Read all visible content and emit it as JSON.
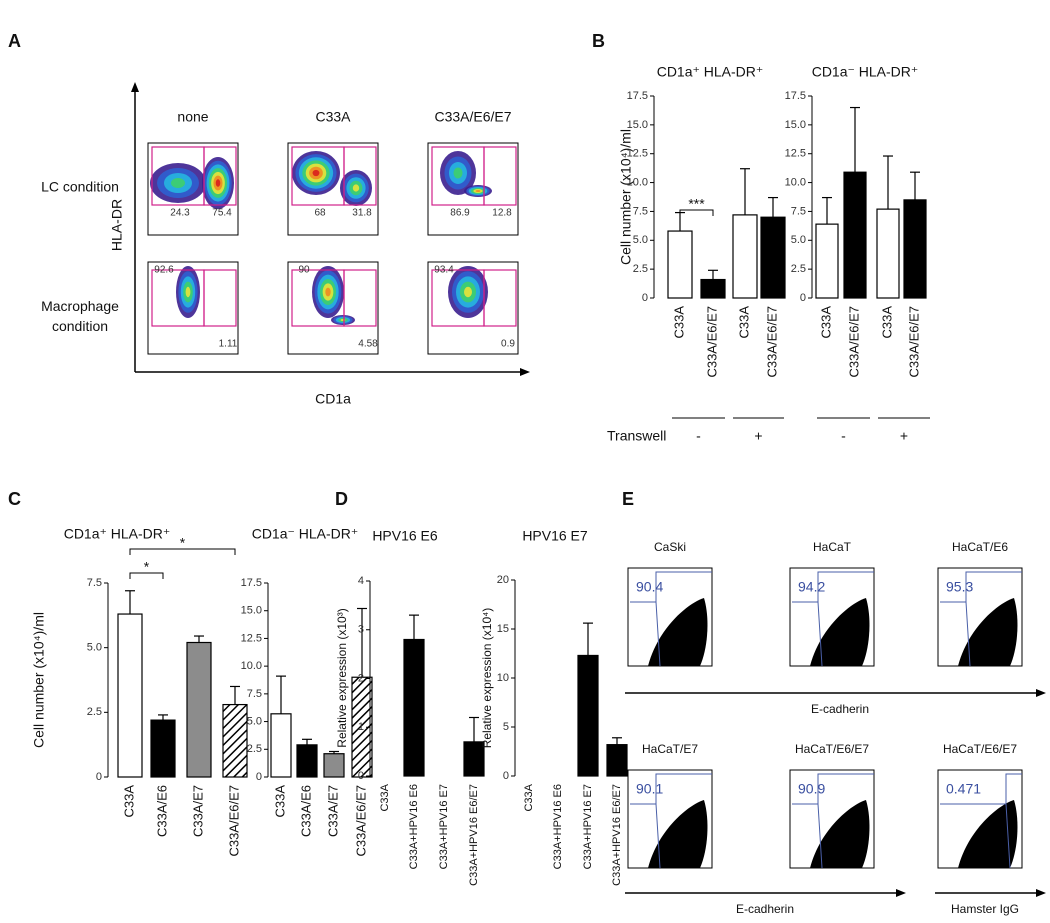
{
  "panel_labels": [
    "A",
    "B",
    "C",
    "D",
    "E"
  ],
  "flow_a": {
    "columns": [
      "none",
      "C33A",
      "C33A/E6/E7"
    ],
    "rows": [
      "LC condition",
      "Macrophage condition"
    ],
    "y_axis": "HLA-DR",
    "x_axis": "CD1a",
    "gates": [
      [
        [
          24.3,
          75.4
        ],
        [
          68,
          31.8
        ],
        [
          86.9,
          12.8
        ]
      ],
      [
        [
          92.6,
          1.11
        ],
        [
          90,
          4.58
        ],
        [
          93.4,
          0.9
        ]
      ]
    ]
  },
  "flow_e": {
    "plots": [
      "CaSki",
      "HaCaT",
      "HaCaT/E6",
      "HaCaT/E7",
      "HaCaT/E6/E7",
      "HaCaT/E6/E7"
    ],
    "gates": [
      90.4,
      94.2,
      95.3,
      90.1,
      90.9,
      0.471
    ],
    "x_axes": [
      "E-cadherin",
      "E-cadherin",
      "Hamster IgG"
    ]
  },
  "chart_data": [
    {
      "type": "bar",
      "title": "CD1a⁺ HLA-DR⁺",
      "y_label": "Cell number (x10⁴)/ml",
      "categories": [
        "C33A",
        "C33A/E6/E7",
        "C33A",
        "C33A/E6/E7"
      ],
      "values": [
        5.8,
        1.6,
        7.2,
        7.0
      ],
      "errors": [
        1.6,
        0.8,
        4.0,
        1.7
      ],
      "colors": [
        "#ffffff",
        "#000000",
        "#ffffff",
        "#000000"
      ],
      "ylim": [
        0,
        17.5
      ],
      "yticks": [
        0,
        2.5,
        {
          "value": 5,
          "label": "5.0"
        },
        7.5,
        {
          "value": 10,
          "label": "10.0"
        },
        12.5,
        {
          "value": 15,
          "label": "15.0"
        },
        17.5
      ],
      "annotations": [
        "***"
      ],
      "group_label": "Transwell",
      "groups": [
        "-",
        "+"
      ]
    },
    {
      "type": "bar",
      "title": "CD1a⁻ HLA-DR⁺",
      "categories": [
        "C33A",
        "C33A/E6/E7",
        "C33A",
        "C33A/E6/E7"
      ],
      "values": [
        6.4,
        10.9,
        7.7,
        8.5
      ],
      "errors": [
        2.3,
        5.6,
        4.6,
        2.4
      ],
      "colors": [
        "#ffffff",
        "#000000",
        "#ffffff",
        "#000000"
      ],
      "ylim": [
        0,
        17.5
      ],
      "yticks": [
        0,
        2.5,
        {
          "value": 5,
          "label": "5.0"
        },
        7.5,
        {
          "value": 10,
          "label": "10.0"
        },
        12.5,
        {
          "value": 15,
          "label": "15.0"
        },
        17.5
      ],
      "groups": [
        "-",
        "+"
      ]
    },
    {
      "type": "bar",
      "title": "CD1a⁺ HLA-DR⁺",
      "y_label": "Cell number (x10⁴)/ml",
      "categories": [
        "C33A",
        "C33A/E6",
        "C33A/E7",
        "C33A/E6/E7"
      ],
      "values": [
        6.3,
        2.2,
        5.2,
        2.8
      ],
      "errors": [
        0.9,
        0.2,
        0.25,
        0.7
      ],
      "colors": [
        "#ffffff",
        "#000000",
        "#8c8c8c",
        "#ffffff"
      ],
      "hatch": [
        false,
        false,
        false,
        true
      ],
      "ylim": [
        0,
        7.5
      ],
      "yticks": [
        0,
        2.5,
        {
          "value": 5,
          "label": "5.0"
        },
        7.5
      ],
      "annotations": [
        "*",
        "*"
      ]
    },
    {
      "type": "bar",
      "title": "CD1a⁻ HLA-DR⁺",
      "categories": [
        "C33A",
        "C33A/E6",
        "C33A/E7",
        "C33A/E6/E7"
      ],
      "values": [
        5.7,
        2.9,
        2.1,
        9.0
      ],
      "errors": [
        3.4,
        0.5,
        0.2,
        6.2
      ],
      "colors": [
        "#ffffff",
        "#000000",
        "#8c8c8c",
        "#ffffff"
      ],
      "hatch": [
        false,
        false,
        false,
        true
      ],
      "ylim": [
        0,
        17.5
      ],
      "yticks": [
        0,
        2.5,
        {
          "value": 5,
          "label": "5.0"
        },
        7.5,
        {
          "value": 10,
          "label": "10.0"
        },
        12.5,
        {
          "value": 15,
          "label": "15.0"
        },
        17.5
      ]
    },
    {
      "type": "bar",
      "title": "HPV16 E6",
      "y_label": "Relative expression (x10³)",
      "categories": [
        "C33A",
        "C33A+HPV16 E6",
        "C33A+HPV16 E7",
        "C33A+HPV16 E6/E7"
      ],
      "values": [
        0,
        2.8,
        0,
        0.7
      ],
      "errors": [
        null,
        0.5,
        null,
        0.5
      ],
      "colors": [
        "#000000",
        "#000000",
        "#000000",
        "#000000"
      ],
      "ylim": [
        0,
        4
      ],
      "yticks": [
        0,
        1,
        2,
        3,
        4
      ]
    },
    {
      "type": "bar",
      "title": "HPV16 E7",
      "y_label": "Relative expression (x10⁴)",
      "categories": [
        "C33A",
        "C33A+HPV16 E6",
        "C33A+HPV16 E7",
        "C33A+HPV16 E6/E7"
      ],
      "values": [
        0,
        0,
        12.3,
        3.2
      ],
      "errors": [
        null,
        null,
        3.3,
        0.7
      ],
      "colors": [
        "#000000",
        "#000000",
        "#000000",
        "#000000"
      ],
      "ylim": [
        0,
        20
      ],
      "yticks": [
        0,
        5,
        10,
        15,
        20
      ]
    }
  ]
}
